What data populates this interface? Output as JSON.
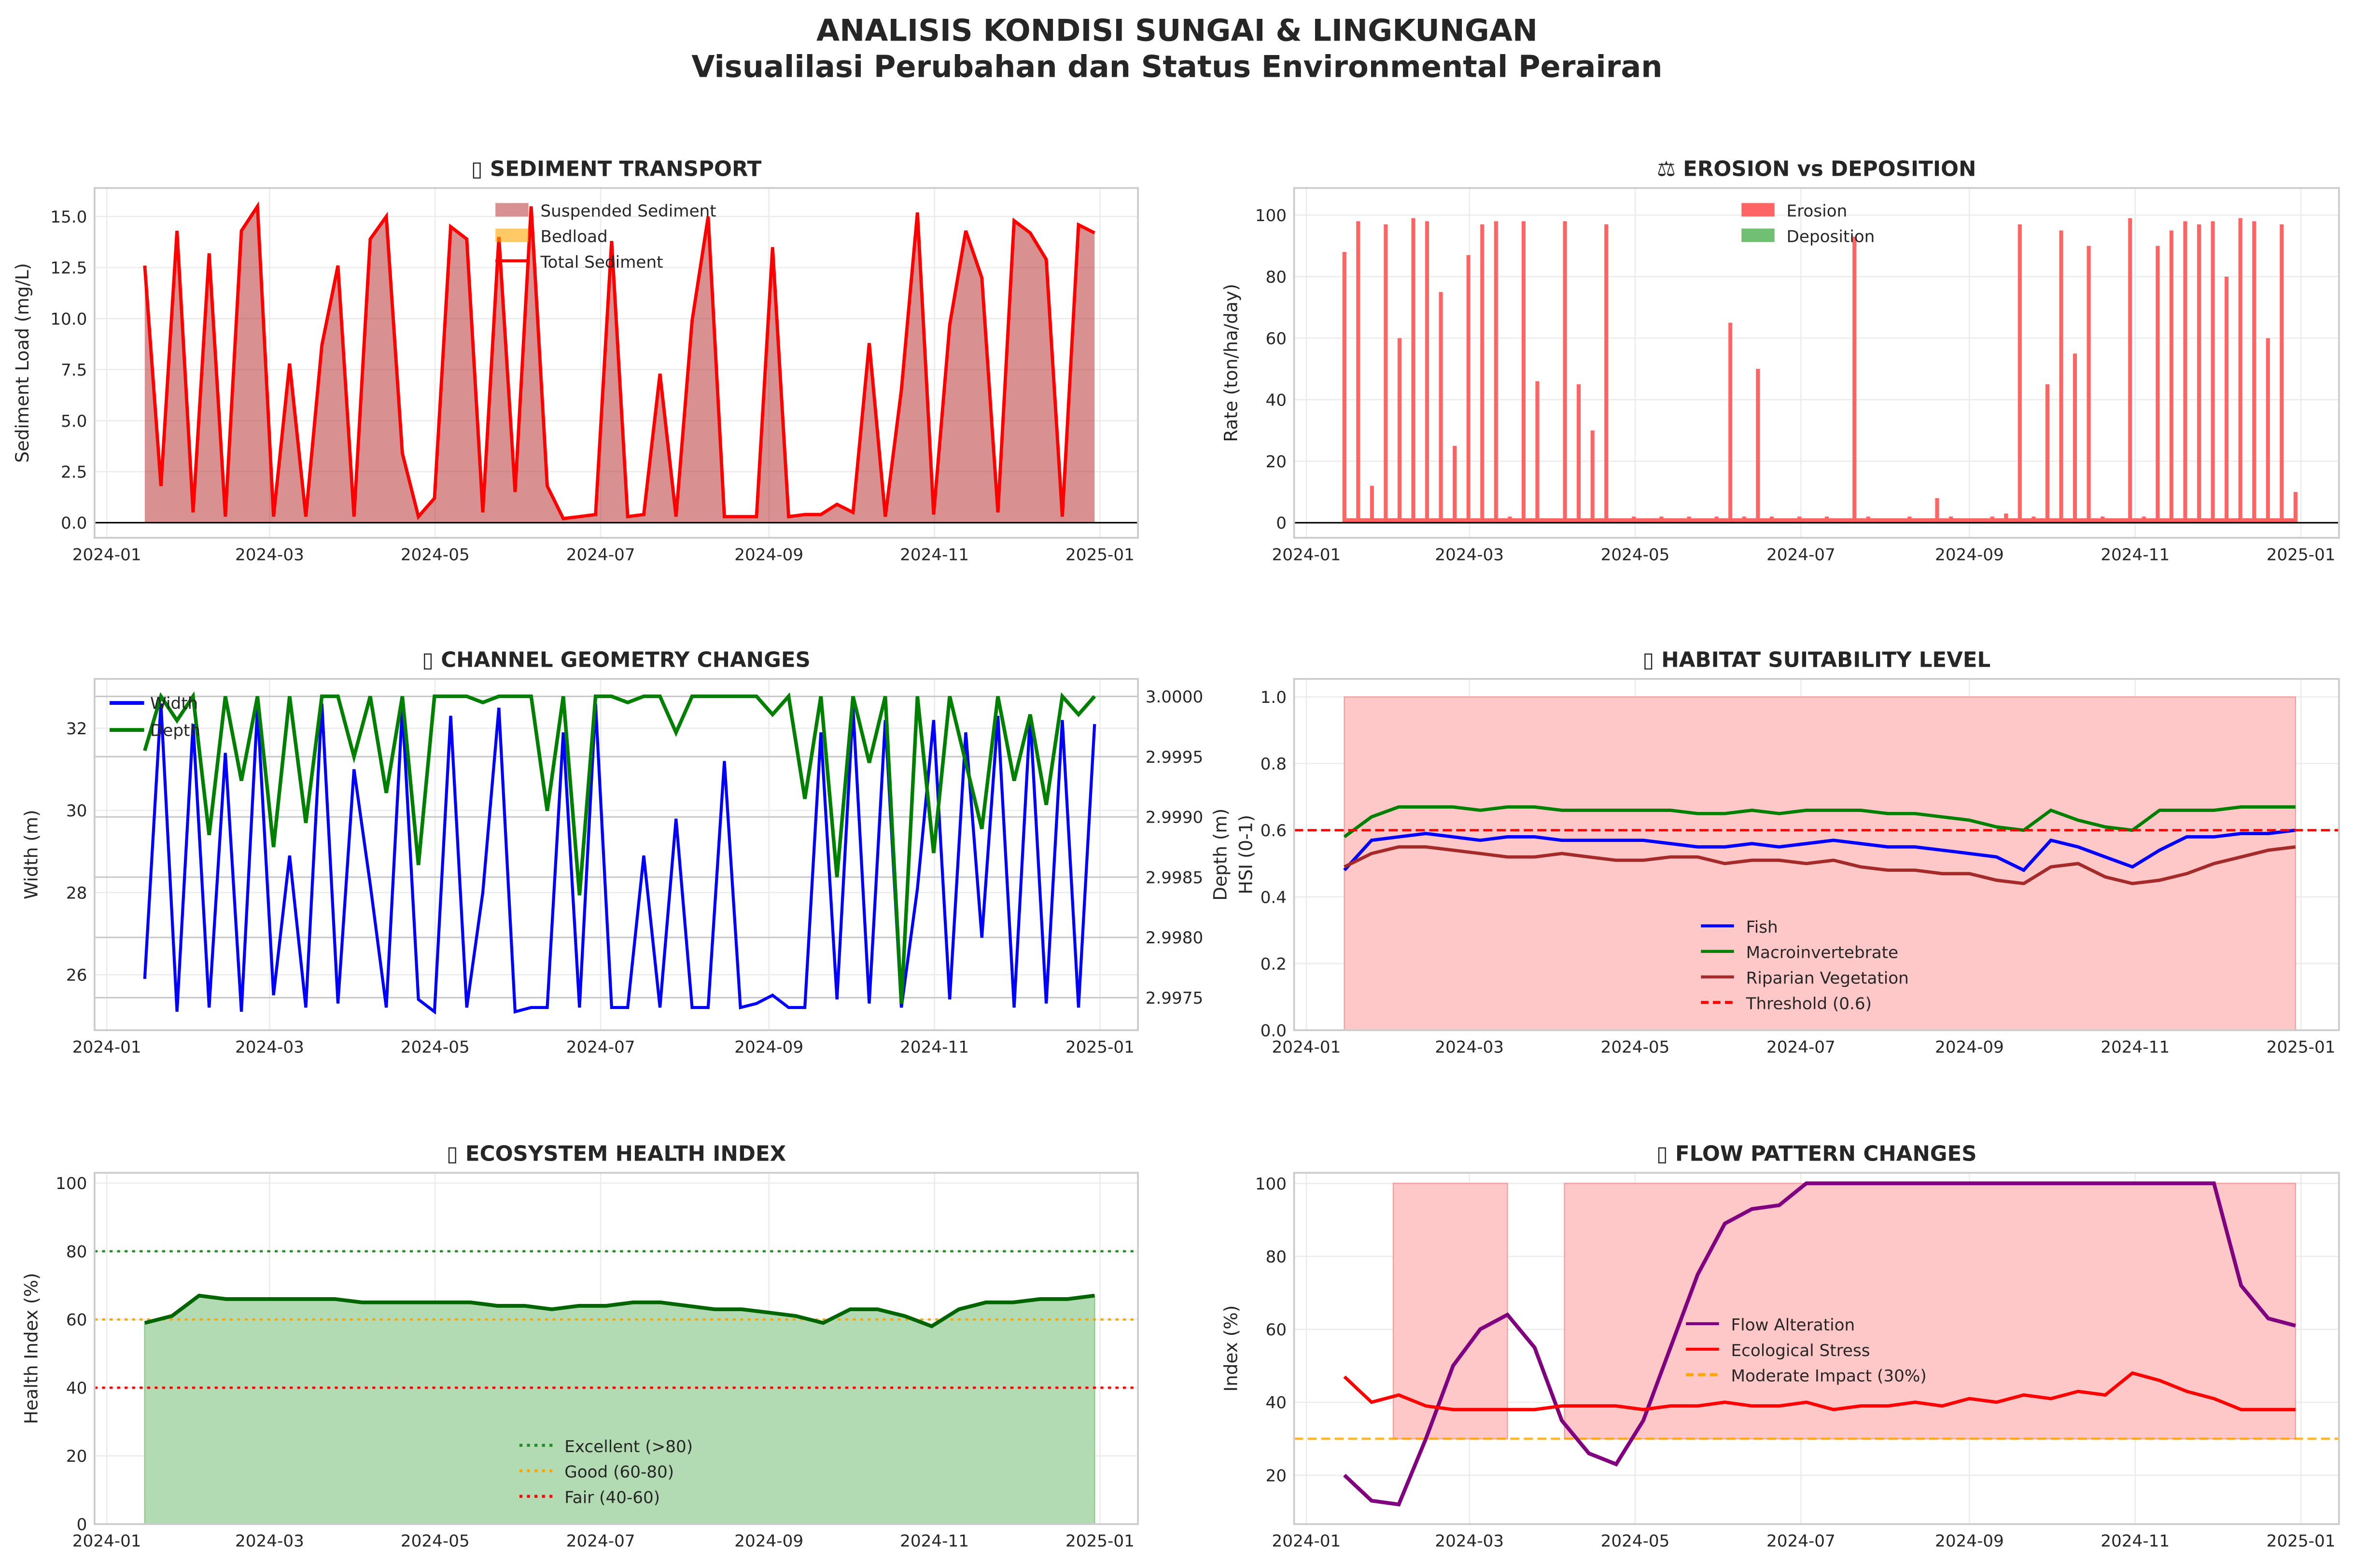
{
  "figure": {
    "title": "ANALISIS KONDISI SUNGAI & LINGKUNGAN",
    "subtitle": "Visualilasi Perubahan dan Status Environmental Perairan"
  },
  "x_axis": {
    "tick_labels": [
      "2024-01",
      "2024-03",
      "2024-05",
      "2024-07",
      "2024-09",
      "2024-11",
      "2025-01"
    ],
    "tick_days": [
      0,
      60,
      121,
      182,
      244,
      305,
      366
    ],
    "data_start_day": 14,
    "data_end_day": 364,
    "xlim_days": [
      -4.5,
      380
    ]
  },
  "chart_data": [
    {
      "id": "sediment",
      "type": "area",
      "title": "▯ SEDIMENT TRANSPORT",
      "ylabel": "Sediment Load (mg/L)",
      "ylim": [
        -0.74,
        16.4
      ],
      "yticks": [
        0.0,
        2.5,
        5.0,
        7.5,
        10.0,
        12.5,
        15.0
      ],
      "ytick_labels": [
        "0.0",
        "2.5",
        "5.0",
        "7.5",
        "10.0",
        "12.5",
        "15.0"
      ],
      "legend": [
        "Suspended Sediment",
        "Bedload",
        "Total Sediment"
      ],
      "colors": {
        "suspended": "#b22222",
        "bedload": "#ffa500",
        "total": "#ff0000"
      },
      "total": [
        12.6,
        1.8,
        14.3,
        0.5,
        13.2,
        0.3,
        14.3,
        15.5,
        0.3,
        7.8,
        0.3,
        8.7,
        12.6,
        0.3,
        13.9,
        15.0,
        3.4,
        0.3,
        1.2,
        14.5,
        13.9,
        0.5,
        14.0,
        1.5,
        15.5,
        1.8,
        0.2,
        0.3,
        0.4,
        13.8,
        0.3,
        0.4,
        7.3,
        0.3,
        9.9,
        15.0,
        0.3,
        0.3,
        0.3,
        13.5,
        0.3,
        0.4,
        0.4,
        0.9,
        0.5,
        8.8,
        0.3,
        6.5,
        15.2,
        0.4,
        9.7,
        14.3,
        12.0,
        0.5,
        14.8,
        14.2,
        12.9,
        0.3,
        14.6,
        14.2
      ]
    },
    {
      "id": "erosion",
      "type": "bar",
      "title": "⚖ EROSION vs DEPOSITION",
      "ylabel": "Rate (ton/ha/day)",
      "ylim": [
        -4.9,
        108.8
      ],
      "yticks": [
        0,
        20,
        40,
        60,
        80,
        100
      ],
      "ytick_labels": [
        "0",
        "20",
        "40",
        "60",
        "80",
        "100"
      ],
      "legend": [
        "Erosion",
        "Deposition"
      ],
      "colors": {
        "erosion": "#ff6464",
        "deposition": "#4caf50"
      },
      "erosion": [
        88,
        98,
        12,
        97,
        60,
        99,
        98,
        75,
        25,
        87,
        97,
        98,
        2,
        98,
        46,
        1,
        98,
        45,
        30,
        97,
        1,
        2,
        1,
        2,
        1,
        2,
        1,
        2,
        65,
        2,
        50,
        2,
        1,
        2,
        1,
        2,
        1,
        93,
        2,
        1,
        1,
        2,
        1,
        8,
        2,
        1,
        1,
        2,
        3,
        97,
        2,
        45,
        95,
        55,
        90,
        2,
        1,
        99,
        2,
        90,
        95,
        98,
        97,
        98,
        80,
        99,
        98,
        60,
        97,
        10
      ]
    },
    {
      "id": "channel",
      "type": "line",
      "title": "▯ CHANNEL GEOMETRY CHANGES",
      "ylabel": "Width (m)",
      "ylabel_right": "Depth (m)",
      "ylim": [
        24.65,
        33.2
      ],
      "yticks": [
        26,
        28,
        30,
        32
      ],
      "ytick_labels": [
        "26",
        "28",
        "30",
        "32"
      ],
      "ylim_right": [
        2.99723,
        3.000145
      ],
      "yticks_right": [
        2.9975,
        2.998,
        2.9985,
        2.999,
        2.9995,
        3.0
      ],
      "ytick_labels_right": [
        "2.9975",
        "2.9980",
        "2.9985",
        "2.9990",
        "2.9995",
        "3.0000"
      ],
      "legend": [
        "Width",
        "Depth"
      ],
      "colors": {
        "width": "#0000ff",
        "depth": "#008000"
      },
      "width": [
        25.9,
        32.6,
        25.1,
        32.1,
        25.2,
        31.4,
        25.1,
        32.5,
        25.5,
        28.9,
        25.2,
        32.6,
        25.3,
        31.0,
        28.2,
        25.2,
        32.5,
        25.4,
        25.1,
        32.3,
        25.2,
        28.0,
        32.5,
        25.1,
        25.2,
        25.2,
        31.9,
        25.2,
        32.6,
        25.2,
        25.2,
        28.9,
        25.2,
        29.8,
        25.2,
        25.2,
        31.2,
        25.2,
        25.3,
        25.5,
        25.2,
        25.2,
        31.9,
        25.4,
        32.5,
        25.3,
        32.2,
        25.2,
        28.1,
        32.2,
        25.4,
        31.9,
        26.9,
        32.3,
        25.2,
        32.3,
        25.3,
        32.2,
        25.2,
        32.1
      ],
      "depth": [
        2.99955,
        3.0,
        2.9998,
        3.0,
        2.99885,
        3.0,
        2.9993,
        3.0,
        2.99875,
        3.0,
        2.99895,
        3.0,
        3.0,
        2.9995,
        3.0,
        2.9992,
        3.0,
        2.9986,
        3.0,
        3.0,
        3.0,
        2.99995,
        3.0,
        3.0,
        3.0,
        2.99905,
        3.0,
        2.99835,
        3.0,
        3.0,
        2.99995,
        3.0,
        3.0,
        2.9997,
        3.0,
        3.0,
        3.0,
        3.0,
        3.0,
        2.99985,
        3.0,
        2.99915,
        3.0,
        2.9985,
        3.0,
        2.99945,
        3.0,
        2.99745,
        3.0,
        2.9987,
        3.0,
        2.99945,
        2.9989,
        3.0,
        2.9993,
        2.99985,
        2.9991,
        3.0,
        2.99985,
        3.0
      ]
    },
    {
      "id": "habitat",
      "type": "line",
      "title": "▯ HABITAT SUITABILITY LEVEL",
      "ylabel": "HSI (0-1)",
      "ylim": [
        0,
        1.054
      ],
      "yticks": [
        0,
        0.2,
        0.4,
        0.6,
        0.8,
        1.0
      ],
      "ytick_labels": [
        "0.0",
        "0.2",
        "0.4",
        "0.6",
        "0.8",
        "1.0"
      ],
      "threshold": 0.6,
      "shade_range": [
        0,
        1
      ],
      "legend": [
        "Fish",
        "Macroinvertebrate",
        "Riparian Vegetation",
        "Threshold (0.6)"
      ],
      "colors": {
        "fish": "#0000ff",
        "macro": "#008000",
        "riparian": "#a52a2a",
        "threshold": "#ff0000",
        "shade": "#ffc8c8"
      },
      "fish": [
        0.48,
        0.57,
        0.58,
        0.59,
        0.58,
        0.57,
        0.58,
        0.58,
        0.57,
        0.57,
        0.57,
        0.57,
        0.56,
        0.55,
        0.55,
        0.56,
        0.55,
        0.56,
        0.57,
        0.56,
        0.55,
        0.55,
        0.54,
        0.53,
        0.52,
        0.48,
        0.57,
        0.55,
        0.52,
        0.49,
        0.54,
        0.58,
        0.58,
        0.59,
        0.59,
        0.6
      ],
      "macro": [
        0.58,
        0.64,
        0.67,
        0.67,
        0.67,
        0.66,
        0.67,
        0.67,
        0.66,
        0.66,
        0.66,
        0.66,
        0.66,
        0.65,
        0.65,
        0.66,
        0.65,
        0.66,
        0.66,
        0.66,
        0.65,
        0.65,
        0.64,
        0.63,
        0.61,
        0.6,
        0.66,
        0.63,
        0.61,
        0.6,
        0.66,
        0.66,
        0.66,
        0.67,
        0.67,
        0.67
      ],
      "riparian": [
        0.49,
        0.53,
        0.55,
        0.55,
        0.54,
        0.53,
        0.52,
        0.52,
        0.53,
        0.52,
        0.51,
        0.51,
        0.52,
        0.52,
        0.5,
        0.51,
        0.51,
        0.5,
        0.51,
        0.49,
        0.48,
        0.48,
        0.47,
        0.47,
        0.45,
        0.44,
        0.49,
        0.5,
        0.46,
        0.44,
        0.45,
        0.47,
        0.5,
        0.52,
        0.54,
        0.55
      ]
    },
    {
      "id": "health",
      "type": "area",
      "title": "▯ ECOSYSTEM HEALTH INDEX",
      "ylabel": "Health Index (%)",
      "ylim": [
        0,
        103
      ],
      "yticks": [
        0,
        20,
        40,
        60,
        80,
        100
      ],
      "ytick_labels": [
        "0",
        "20",
        "40",
        "60",
        "80",
        "100"
      ],
      "thresholds": [
        80,
        60,
        40
      ],
      "legend": [
        "Excellent (>80)",
        "Good (60-80)",
        "Fair (40-60)"
      ],
      "colors": {
        "line": "#006400",
        "fill": "#b3dbb3",
        "excellent": "#228b22",
        "good": "#ffa500",
        "fair": "#ff0000"
      },
      "health": [
        59,
        61,
        67,
        66,
        66,
        66,
        66,
        66,
        65,
        65,
        65,
        65,
        65,
        64,
        64,
        63,
        64,
        64,
        65,
        65,
        64,
        63,
        63,
        62,
        61,
        59,
        63,
        63,
        61,
        58,
        63,
        65,
        65,
        66,
        66,
        67
      ]
    },
    {
      "id": "flow",
      "type": "line",
      "title": "▯ FLOW PATTERN CHANGES",
      "ylabel": "Index (%)",
      "ylim": [
        6.6,
        102.9
      ],
      "yticks": [
        20,
        40,
        60,
        80,
        100
      ],
      "ytick_labels": [
        "20",
        "40",
        "60",
        "80",
        "100"
      ],
      "moderate": 30,
      "shaded_periods_days": [
        [
          32,
          74
        ],
        [
          95,
          364
        ]
      ],
      "legend": [
        "Flow Alteration",
        "Ecological Stress",
        "Moderate Impact (30%)"
      ],
      "colors": {
        "alteration": "#800080",
        "stress": "#ff0000",
        "moderate": "#ffa500",
        "shade": "#ffc8c8"
      },
      "alteration": [
        20,
        13,
        12,
        30,
        50,
        60,
        64,
        55,
        35,
        26,
        23,
        35,
        55,
        75,
        89,
        93,
        94,
        100,
        100,
        100,
        100,
        100,
        100,
        100,
        100,
        100,
        100,
        100,
        100,
        100,
        100,
        100,
        100,
        72,
        63,
        61
      ],
      "stress": [
        47,
        40,
        42,
        39,
        38,
        38,
        38,
        38,
        39,
        39,
        39,
        38,
        39,
        39,
        40,
        39,
        39,
        40,
        38,
        39,
        39,
        40,
        39,
        41,
        40,
        42,
        41,
        43,
        42,
        48,
        46,
        43,
        41,
        38,
        38,
        38
      ]
    }
  ]
}
